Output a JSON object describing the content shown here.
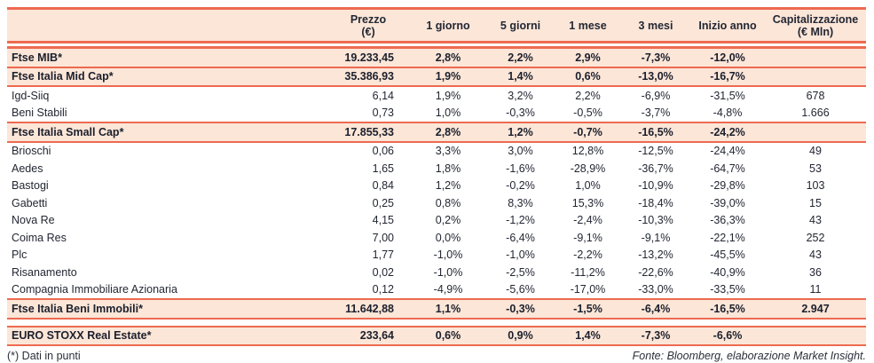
{
  "table": {
    "columns": [
      {
        "key": "name",
        "label": "",
        "sub": ""
      },
      {
        "key": "prezzo",
        "label": "Prezzo",
        "sub": "(€)"
      },
      {
        "key": "d1",
        "label": "1 giorno",
        "sub": ""
      },
      {
        "key": "d5",
        "label": "5 giorni",
        "sub": ""
      },
      {
        "key": "m1",
        "label": "1 mese",
        "sub": ""
      },
      {
        "key": "m3",
        "label": "3 mesi",
        "sub": ""
      },
      {
        "key": "inizio",
        "label": "Inizio anno",
        "sub": ""
      },
      {
        "key": "cap",
        "label": "Capitalizzazione",
        "sub": "(€ Mln)"
      }
    ],
    "rows": [
      {
        "type": "index",
        "name": "Ftse MIB*",
        "prezzo": "19.233,45",
        "d1": "2,8%",
        "d5": "2,2%",
        "m1": "2,9%",
        "m3": "-7,3%",
        "inizio": "-12,0%",
        "cap": ""
      },
      {
        "type": "index",
        "name": "Ftse Italia Mid Cap*",
        "prezzo": "35.386,93",
        "d1": "1,9%",
        "d5": "1,4%",
        "m1": "0,6%",
        "m3": "-13,0%",
        "inizio": "-16,7%",
        "cap": ""
      },
      {
        "type": "company",
        "name": "Igd-Siiq",
        "prezzo": "6,14",
        "d1": "1,9%",
        "d5": "3,2%",
        "m1": "2,2%",
        "m3": "-6,9%",
        "inizio": "-31,5%",
        "cap": "678"
      },
      {
        "type": "company",
        "name": "Beni Stabili",
        "prezzo": "0,73",
        "d1": "1,0%",
        "d5": "-0,3%",
        "m1": "-0,5%",
        "m3": "-3,7%",
        "inizio": "-4,8%",
        "cap": "1.666"
      },
      {
        "type": "index",
        "name": "Ftse Italia Small Cap*",
        "prezzo": "17.855,33",
        "d1": "2,8%",
        "d5": "1,2%",
        "m1": "-0,7%",
        "m3": "-16,5%",
        "inizio": "-24,2%",
        "cap": ""
      },
      {
        "type": "company",
        "name": "Brioschi",
        "prezzo": "0,06",
        "d1": "3,3%",
        "d5": "3,0%",
        "m1": "12,8%",
        "m3": "-12,5%",
        "inizio": "-24,4%",
        "cap": "49"
      },
      {
        "type": "company",
        "name": "Aedes",
        "prezzo": "1,65",
        "d1": "1,8%",
        "d5": "-1,6%",
        "m1": "-28,9%",
        "m3": "-36,7%",
        "inizio": "-64,7%",
        "cap": "53"
      },
      {
        "type": "company",
        "name": "Bastogi",
        "prezzo": "0,84",
        "d1": "1,2%",
        "d5": "-0,2%",
        "m1": "1,0%",
        "m3": "-10,9%",
        "inizio": "-29,8%",
        "cap": "103"
      },
      {
        "type": "company",
        "name": "Gabetti",
        "prezzo": "0,25",
        "d1": "0,8%",
        "d5": "8,3%",
        "m1": "15,3%",
        "m3": "-18,4%",
        "inizio": "-39,0%",
        "cap": "15"
      },
      {
        "type": "company",
        "name": "Nova Re",
        "prezzo": "4,15",
        "d1": "0,2%",
        "d5": "-1,2%",
        "m1": "-2,4%",
        "m3": "-10,3%",
        "inizio": "-36,3%",
        "cap": "43"
      },
      {
        "type": "company",
        "name": "Coima Res",
        "prezzo": "7,00",
        "d1": "0,0%",
        "d5": "-6,4%",
        "m1": "-9,1%",
        "m3": "-9,1%",
        "inizio": "-22,1%",
        "cap": "252"
      },
      {
        "type": "company",
        "name": "Plc",
        "prezzo": "1,77",
        "d1": "-1,0%",
        "d5": "-1,0%",
        "m1": "-2,2%",
        "m3": "-13,2%",
        "inizio": "-45,5%",
        "cap": "43"
      },
      {
        "type": "company",
        "name": "Risanamento",
        "prezzo": "0,02",
        "d1": "-1,0%",
        "d5": "-2,5%",
        "m1": "-11,2%",
        "m3": "-22,6%",
        "inizio": "-40,9%",
        "cap": "36"
      },
      {
        "type": "company",
        "name": "Compagnia Immobiliare Azionaria",
        "prezzo": "0,12",
        "d1": "-4,9%",
        "d5": "-5,6%",
        "m1": "-17,0%",
        "m3": "-33,0%",
        "inizio": "-33,5%",
        "cap": "11"
      },
      {
        "type": "index",
        "name": "Ftse Italia Beni Immobili*",
        "prezzo": "11.642,88",
        "d1": "1,1%",
        "d5": "-0,3%",
        "m1": "-1,5%",
        "m3": "-6,4%",
        "inizio": "-16,5%",
        "cap": "2.947"
      },
      {
        "type": "gap"
      },
      {
        "type": "index",
        "name": "EURO STOXX Real Estate*",
        "prezzo": "233,64",
        "d1": "0,6%",
        "d5": "0,9%",
        "m1": "1,4%",
        "m3": "-7,3%",
        "inizio": "-6,6%",
        "cap": ""
      }
    ]
  },
  "footer": {
    "footnote": "(*) Dati in punti",
    "source": "Fonte: Bloomberg, elaborazione Market Insight."
  },
  "colors": {
    "border": "#EE6A50",
    "row_highlight": "#FBE6D8",
    "text": "#232733"
  }
}
